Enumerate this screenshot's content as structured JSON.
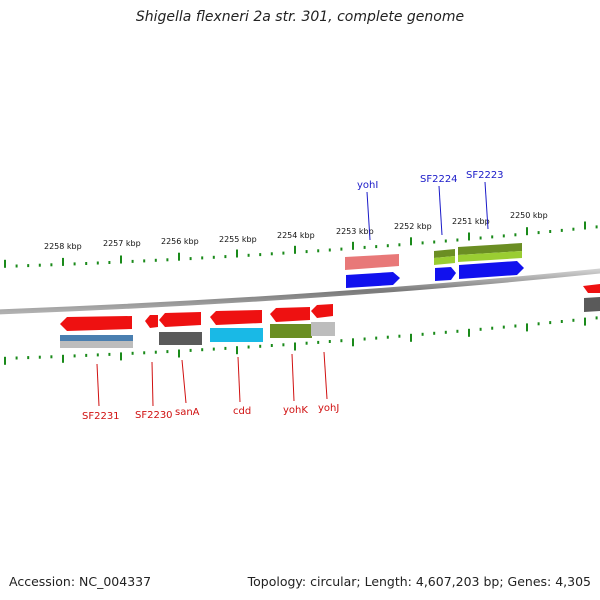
{
  "title": "Shigella flexneri 2a str. 301, complete genome",
  "footer": {
    "accession": "Accession: NC_004337",
    "summary": "Topology: circular; Length: 4,607,203 bp; Genes: 4,305"
  },
  "scale_labels": [
    "2258 kbp",
    "2257 kbp",
    "2256 kbp",
    "2255 kbp",
    "2254 kbp",
    "2253 kbp",
    "2252 kbp",
    "2251 kbp",
    "2250 kbp"
  ],
  "top_gene_labels": [
    {
      "text": "yohI",
      "color": "#1a1ac8"
    },
    {
      "text": "SF2224",
      "color": "#1a1ac8"
    },
    {
      "text": "SF2223",
      "color": "#1a1ac8"
    }
  ],
  "bottom_gene_labels": [
    {
      "text": "SF2231",
      "color": "#d01010"
    },
    {
      "text": "SF2230",
      "color": "#d01010"
    },
    {
      "text": "sanA",
      "color": "#d01010"
    },
    {
      "text": "cdd",
      "color": "#d01010"
    },
    {
      "text": "yohK",
      "color": "#d01010"
    },
    {
      "text": "yohJ",
      "color": "#d01010"
    }
  ],
  "colors": {
    "backbone": "#8a8a8a",
    "tick": "#1a8a1a",
    "gene_red": "#ee1111",
    "gene_blue": "#1111ee",
    "pink": "#e87878",
    "olive": "#6b8e23",
    "lime": "#9acd32",
    "cyan": "#19b9e6",
    "steel": "#4a7fb0",
    "dark_gray": "#5a5a5a",
    "light_gray": "#bdbdbd"
  }
}
